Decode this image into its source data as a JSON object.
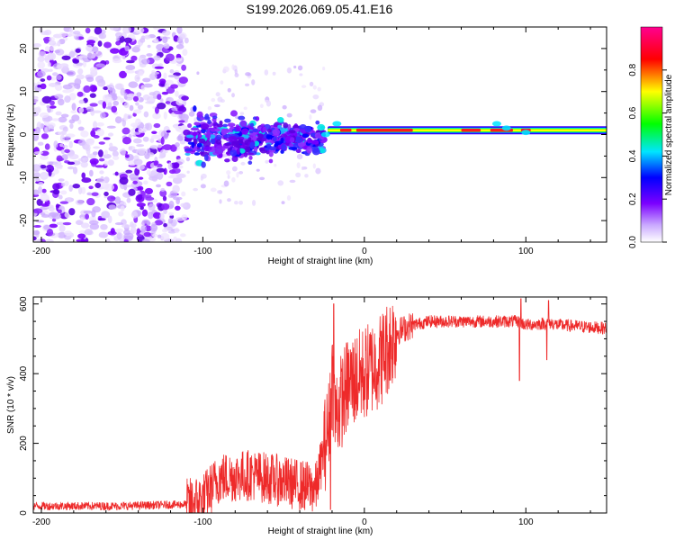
{
  "title": "S199.2026.069.05.41.E16",
  "chart_data": [
    {
      "type": "heatmap",
      "title": "S199.2026.069.05.41.E16",
      "xlabel": "Height of straight line (km)",
      "ylabel": "Frequency (Hz)",
      "xlim": [
        -205,
        150
      ],
      "ylim": [
        -25,
        25
      ],
      "xticks": [
        -200,
        -100,
        0,
        100
      ],
      "yticks": [
        -20,
        -10,
        0,
        10,
        20
      ],
      "colorbar": {
        "label": "Normalized spectral amplitude",
        "range": [
          0,
          1
        ],
        "ticks": [
          "0.0",
          "0.2",
          "0.4",
          "0.6",
          "0.8"
        ],
        "stops": [
          "#ffffff",
          "#7b00ff",
          "#0000ff",
          "#00e5ff",
          "#00ff00",
          "#ffff00",
          "#ff0000",
          "#ff0090"
        ]
      },
      "regions": [
        {
          "x_range": [
            -205,
            -110
          ],
          "freq_spread": 25,
          "amplitude": "0.0-0.3",
          "description": "scattered noise"
        },
        {
          "x_range": [
            -110,
            -25
          ],
          "freq_spread": 8,
          "amplitude": "0.2-0.5"
        },
        {
          "x_range": [
            -25,
            150
          ],
          "center_freq": 1,
          "freq_spread": 1.5,
          "amplitude": "0.6-1.0"
        }
      ]
    },
    {
      "type": "line",
      "xlabel": "Height of straight line (km)",
      "ylabel": "SNR (10 * v/v)",
      "xlim": [
        -205,
        150
      ],
      "ylim": [
        0,
        620
      ],
      "xticks": [
        -200,
        -100,
        0,
        100
      ],
      "yticks": [
        0,
        200,
        400,
        600
      ],
      "series": [
        {
          "name": "SNR",
          "color": "#ee2a2a",
          "x": [
            -205,
            -150,
            -110,
            -100,
            -90,
            -70,
            -50,
            -30,
            -22,
            -20,
            -18,
            -10,
            0,
            10,
            20,
            30,
            40,
            60,
            80,
            95,
            100,
            115,
            120,
            150
          ],
          "y": [
            20,
            20,
            25,
            40,
            100,
            110,
            90,
            70,
            250,
            400,
            280,
            370,
            400,
            440,
            520,
            540,
            550,
            550,
            550,
            550,
            540,
            545,
            540,
            530
          ],
          "spikes": [
            {
              "x": -19,
              "y": 600
            },
            {
              "x": -21,
              "y": 10
            },
            {
              "x": 96,
              "y": 380
            },
            {
              "x": 97,
              "y": 615
            },
            {
              "x": 114,
              "y": 610
            },
            {
              "x": 113,
              "y": 440
            }
          ]
        }
      ]
    }
  ]
}
